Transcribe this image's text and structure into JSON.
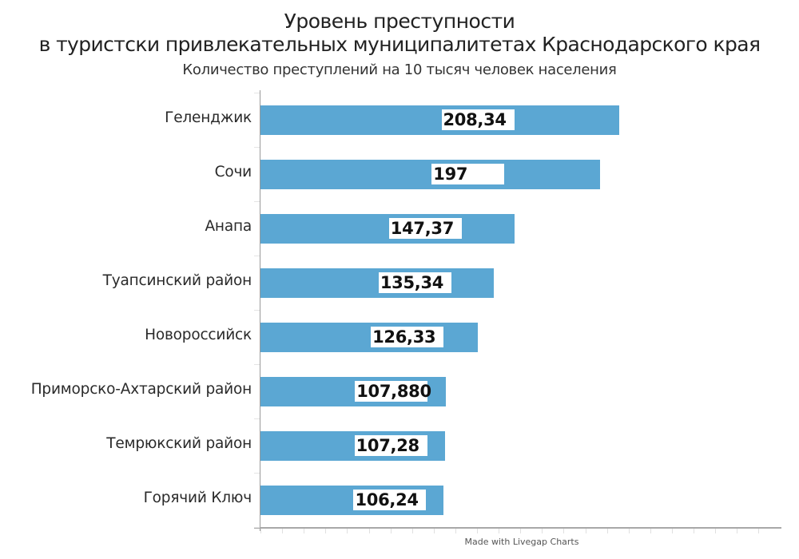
{
  "chart_data": {
    "type": "bar",
    "orientation": "horizontal",
    "title": "Уровень преступности",
    "title_line2": "в туристски привлекательных муниципалитетах Краснодарского края",
    "subtitle": "Количество преступлений на 10 тысяч человек населения",
    "categories": [
      "Геленджик",
      "Сочи",
      "Анапа",
      "Туапсинский район",
      "Новороссийск",
      "Приморско-Ахтарский район",
      "Темрюкский район",
      "Горячий Ключ"
    ],
    "values": [
      208.34,
      197,
      147.37,
      135.34,
      126.33,
      107.88,
      107.28,
      106.24
    ],
    "value_labels": [
      "208,34",
      "197",
      "147,37",
      "135,34",
      "126,33",
      "107,880",
      "107,28",
      "106,24"
    ],
    "xlabel": "",
    "ylabel": "",
    "xlim": [
      0,
      300
    ],
    "grid": false,
    "legend": null,
    "bar_color": "#5ba7d3",
    "credit": "Made with Livegap Charts"
  }
}
